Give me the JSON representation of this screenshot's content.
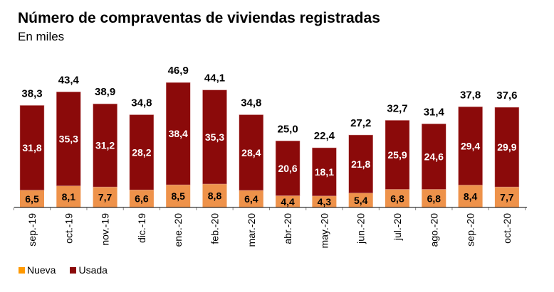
{
  "colors": {
    "nueva_bar": "#EE924A",
    "nueva_accent": "#FF9900",
    "usada": "#8B0A0A",
    "legend_nueva": "#FF9900",
    "legend_usada": "#8B0A0A"
  },
  "chart_data": {
    "type": "bar",
    "stacked": true,
    "title": "Número de compraventas de viviendas registradas",
    "subtitle": "En miles",
    "xlabel": "",
    "ylabel": "",
    "ylim": [
      0,
      50
    ],
    "grid": false,
    "legend_position": "bottom-left",
    "categories": [
      "sep.-19",
      "oct.-19",
      "nov.-19",
      "dic.-19",
      "ene.-20",
      "feb.-20",
      "mar.-20",
      "abr.-20",
      "may.-20",
      "jun.-20",
      "jul.-20",
      "ago.-20",
      "sep.-20",
      "oct.-20"
    ],
    "series": [
      {
        "name": "Nueva",
        "values": [
          6.5,
          8.1,
          7.7,
          6.6,
          8.5,
          8.8,
          6.4,
          4.4,
          4.3,
          5.4,
          6.8,
          6.8,
          8.4,
          7.7
        ],
        "labels": [
          "6,5",
          "8,1",
          "7,7",
          "6,6",
          "8,5",
          "8,8",
          "6,4",
          "4,4",
          "4,3",
          "5,4",
          "6,8",
          "6,8",
          "8,4",
          "7,7"
        ]
      },
      {
        "name": "Usada",
        "values": [
          31.8,
          35.3,
          31.2,
          28.2,
          38.4,
          35.3,
          28.4,
          20.6,
          18.1,
          21.8,
          25.9,
          24.6,
          29.4,
          29.9
        ],
        "labels": [
          "31,8",
          "35,3",
          "31,2",
          "28,2",
          "38,4",
          "35,3",
          "28,4",
          "20,6",
          "18,1",
          "21,8",
          "25,9",
          "24,6",
          "29,4",
          "29,9"
        ]
      }
    ],
    "totals": [
      38.3,
      43.4,
      38.9,
      34.8,
      46.9,
      44.1,
      34.8,
      25.0,
      22.4,
      27.2,
      32.7,
      31.4,
      37.8,
      37.6
    ],
    "total_labels": [
      "38,3",
      "43,4",
      "38,9",
      "34,8",
      "46,9",
      "44,1",
      "34,8",
      "25,0",
      "22,4",
      "27,2",
      "32,7",
      "31,4",
      "37,8",
      "37,6"
    ]
  },
  "legend": {
    "items": [
      {
        "label": "Nueva"
      },
      {
        "label": "Usada"
      }
    ]
  }
}
